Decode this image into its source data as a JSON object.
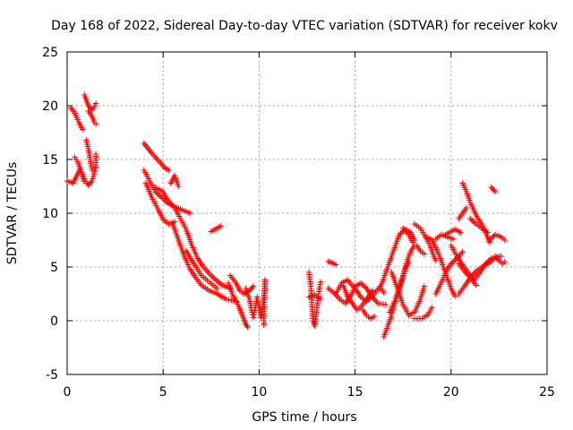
{
  "chart_data": {
    "type": "scatter",
    "title": "Day 168 of 2022, Sidereal Day-to-day VTEC variation (SDTVAR) for receiver kokv",
    "xlabel": "GPS time / hours",
    "ylabel": "SDTVAR / TECUs",
    "xlim": [
      0,
      25
    ],
    "ylim": [
      -5,
      25
    ],
    "xticks": [
      "0",
      "5",
      "10",
      "15",
      "20",
      "25"
    ],
    "yticks": [
      "-5",
      "0",
      "5",
      "10",
      "15",
      "20",
      "25"
    ],
    "grid": true,
    "marker": "plus",
    "color": "#ff0000",
    "tracks": [
      [
        [
          0.0,
          13.0
        ],
        [
          0.3,
          12.8
        ],
        [
          0.5,
          13.5
        ],
        [
          0.7,
          14.2
        ],
        [
          0.85,
          13.0
        ]
      ],
      [
        [
          0.2,
          19.8
        ],
        [
          0.4,
          19.3
        ],
        [
          0.6,
          18.5
        ],
        [
          0.8,
          17.8
        ]
      ],
      [
        [
          0.4,
          15.2
        ],
        [
          0.55,
          14.8
        ],
        [
          0.7,
          14.0
        ],
        [
          0.9,
          13.2
        ],
        [
          1.1,
          12.6
        ],
        [
          1.3,
          13.0
        ],
        [
          1.5,
          14.3
        ],
        [
          1.5,
          15.5
        ]
      ],
      [
        [
          0.9,
          21.0
        ],
        [
          1.0,
          20.5
        ],
        [
          1.1,
          20.0
        ],
        [
          1.3,
          19.6
        ],
        [
          1.5,
          20.2
        ]
      ],
      [
        [
          1.0,
          16.8
        ],
        [
          1.1,
          16.0
        ],
        [
          1.2,
          15.0
        ],
        [
          1.3,
          14.0
        ]
      ],
      [
        [
          1.1,
          19.5
        ],
        [
          1.3,
          19.0
        ],
        [
          1.4,
          18.5
        ],
        [
          1.5,
          18.3
        ]
      ],
      [
        [
          4.0,
          16.5
        ],
        [
          4.4,
          15.6
        ],
        [
          4.8,
          14.8
        ],
        [
          5.1,
          14.2
        ],
        [
          5.3,
          14.0
        ]
      ],
      [
        [
          4.0,
          14.0
        ],
        [
          4.3,
          13.0
        ],
        [
          4.6,
          12.0
        ],
        [
          4.9,
          11.5
        ],
        [
          5.2,
          11.0
        ],
        [
          5.6,
          10.6
        ],
        [
          6.0,
          10.3
        ],
        [
          6.4,
          10.0
        ]
      ],
      [
        [
          4.1,
          12.8
        ],
        [
          4.4,
          11.5
        ],
        [
          4.7,
          10.5
        ],
        [
          5.0,
          9.4
        ],
        [
          5.3,
          9.0
        ],
        [
          5.6,
          9.2
        ]
      ],
      [
        [
          4.6,
          12.4
        ],
        [
          5.0,
          12.0
        ],
        [
          5.2,
          11.3
        ],
        [
          5.6,
          10.5
        ],
        [
          5.9,
          9.5
        ],
        [
          6.2,
          8.5
        ],
        [
          6.5,
          7.0
        ],
        [
          6.8,
          5.8
        ],
        [
          7.1,
          5.0
        ],
        [
          7.5,
          4.2
        ],
        [
          8.0,
          3.4
        ],
        [
          8.5,
          3.0
        ]
      ],
      [
        [
          5.4,
          12.8
        ],
        [
          5.6,
          13.5
        ],
        [
          5.8,
          12.5
        ]
      ],
      [
        [
          5.5,
          9.0
        ],
        [
          5.8,
          7.5
        ],
        [
          6.1,
          6.0
        ],
        [
          6.4,
          4.8
        ],
        [
          6.7,
          4.0
        ],
        [
          7.0,
          3.3
        ],
        [
          7.4,
          2.8
        ],
        [
          7.8,
          2.5
        ],
        [
          8.3,
          2.0
        ],
        [
          8.8,
          1.8
        ]
      ],
      [
        [
          6.2,
          6.5
        ],
        [
          6.6,
          5.3
        ],
        [
          7.0,
          4.2
        ],
        [
          7.4,
          3.6
        ],
        [
          7.8,
          3.0
        ]
      ],
      [
        [
          7.5,
          8.3
        ],
        [
          7.8,
          8.6
        ],
        [
          8.0,
          8.8
        ]
      ],
      [
        [
          8.4,
          3.5
        ],
        [
          8.6,
          2.5
        ],
        [
          8.9,
          1.5
        ],
        [
          9.1,
          0.6
        ],
        [
          9.3,
          -0.3
        ],
        [
          9.4,
          -0.6
        ]
      ],
      [
        [
          8.5,
          4.2
        ],
        [
          8.8,
          3.5
        ],
        [
          9.0,
          2.8
        ],
        [
          9.2,
          2.5
        ],
        [
          9.5,
          2.8
        ],
        [
          9.7,
          3.2
        ]
      ],
      [
        [
          9.3,
          3.0
        ],
        [
          9.5,
          2.0
        ],
        [
          9.6,
          1.0
        ],
        [
          9.7,
          0.3
        ],
        [
          9.8,
          1.2
        ],
        [
          9.9,
          2.2
        ],
        [
          10.0,
          1.0
        ],
        [
          10.1,
          0.3
        ],
        [
          10.2,
          1.5
        ],
        [
          10.3,
          3.0
        ],
        [
          10.3,
          3.8
        ],
        [
          10.25,
          -0.4
        ]
      ],
      [
        [
          12.6,
          4.5
        ],
        [
          12.7,
          3.0
        ],
        [
          12.75,
          1.5
        ],
        [
          12.8,
          0.0
        ],
        [
          12.9,
          -0.5
        ],
        [
          13.0,
          1.0
        ],
        [
          13.1,
          2.5
        ],
        [
          13.2,
          3.6
        ]
      ],
      [
        [
          12.6,
          2.2
        ],
        [
          12.9,
          2.4
        ],
        [
          13.2,
          2.0
        ]
      ],
      [
        [
          13.6,
          5.5
        ],
        [
          13.8,
          5.4
        ],
        [
          14.0,
          5.2
        ]
      ],
      [
        [
          13.6,
          3.0
        ],
        [
          13.9,
          2.6
        ],
        [
          14.2,
          2.0
        ],
        [
          14.5,
          1.6
        ],
        [
          14.8,
          2.4
        ],
        [
          15.0,
          3.2
        ],
        [
          15.3,
          3.5
        ],
        [
          15.6,
          3.0
        ],
        [
          15.9,
          2.2
        ],
        [
          16.2,
          1.6
        ],
        [
          16.6,
          1.5
        ]
      ],
      [
        [
          14.0,
          2.5
        ],
        [
          14.3,
          3.5
        ],
        [
          14.6,
          3.8
        ],
        [
          15.0,
          3.0
        ],
        [
          15.3,
          2.2
        ],
        [
          15.6,
          1.8
        ],
        [
          16.0,
          2.5
        ],
        [
          16.3,
          3.2
        ],
        [
          16.5,
          2.6
        ]
      ],
      [
        [
          14.4,
          3.2
        ],
        [
          14.6,
          2.3
        ],
        [
          14.9,
          1.5
        ],
        [
          15.1,
          1.0
        ],
        [
          15.3,
          1.3
        ],
        [
          15.6,
          2.0
        ],
        [
          15.9,
          2.8
        ]
      ],
      [
        [
          15.4,
          1.0
        ],
        [
          15.6,
          0.5
        ],
        [
          15.8,
          0.2
        ],
        [
          16.0,
          0.4
        ]
      ],
      [
        [
          16.3,
          3.0
        ],
        [
          16.5,
          4.0
        ],
        [
          16.7,
          5.0
        ],
        [
          16.9,
          6.0
        ],
        [
          17.1,
          7.0
        ],
        [
          17.3,
          8.0
        ],
        [
          17.6,
          8.5
        ],
        [
          17.9,
          8.2
        ],
        [
          18.1,
          7.5
        ]
      ],
      [
        [
          16.5,
          -1.5
        ],
        [
          16.7,
          -0.5
        ],
        [
          16.9,
          0.5
        ],
        [
          17.1,
          1.8
        ],
        [
          17.3,
          3.0
        ],
        [
          17.5,
          4.2
        ],
        [
          17.7,
          5.5
        ],
        [
          17.9,
          6.5
        ],
        [
          18.1,
          7.0
        ]
      ],
      [
        [
          16.9,
          4.5
        ],
        [
          17.2,
          3.0
        ],
        [
          17.5,
          1.5
        ],
        [
          17.8,
          0.5
        ],
        [
          18.1,
          0.8
        ],
        [
          18.4,
          2.0
        ],
        [
          18.6,
          3.2
        ]
      ],
      [
        [
          16.8,
          0.8
        ],
        [
          17.1,
          2.0
        ],
        [
          17.4,
          3.5
        ],
        [
          17.6,
          4.8
        ],
        [
          17.8,
          5.5
        ]
      ],
      [
        [
          17.5,
          8.6
        ],
        [
          17.8,
          8.0
        ],
        [
          18.0,
          7.3
        ]
      ],
      [
        [
          18.1,
          0.2
        ],
        [
          18.5,
          0.2
        ],
        [
          18.8,
          0.6
        ],
        [
          19.0,
          1.2
        ]
      ],
      [
        [
          18.1,
          9.0
        ],
        [
          18.4,
          8.6
        ],
        [
          18.6,
          8.0
        ],
        [
          18.9,
          7.0
        ],
        [
          19.1,
          6.0
        ],
        [
          19.2,
          5.6
        ]
      ],
      [
        [
          18.2,
          7.0
        ],
        [
          18.4,
          6.5
        ],
        [
          18.6,
          6.2
        ]
      ],
      [
        [
          18.7,
          7.8
        ],
        [
          19.0,
          7.5
        ],
        [
          19.2,
          6.8
        ],
        [
          19.4,
          6.0
        ],
        [
          19.6,
          5.0
        ],
        [
          19.8,
          4.0
        ],
        [
          20.0,
          3.0
        ],
        [
          20.2,
          2.3
        ]
      ],
      [
        [
          19.2,
          2.5
        ],
        [
          19.4,
          3.2
        ],
        [
          19.6,
          4.0
        ],
        [
          19.8,
          4.8
        ],
        [
          20.0,
          5.3
        ],
        [
          20.3,
          5.8
        ],
        [
          20.6,
          6.4
        ]
      ],
      [
        [
          19.2,
          7.6
        ],
        [
          19.5,
          8.0
        ],
        [
          19.8,
          7.8
        ],
        [
          20.1,
          7.6
        ]
      ],
      [
        [
          19.7,
          8.0
        ],
        [
          20.0,
          8.3
        ],
        [
          20.2,
          8.5
        ],
        [
          20.5,
          8.2
        ]
      ],
      [
        [
          20.0,
          7.0
        ],
        [
          20.3,
          6.0
        ],
        [
          20.6,
          5.2
        ],
        [
          20.9,
          4.5
        ],
        [
          21.2,
          3.8
        ],
        [
          21.5,
          4.5
        ],
        [
          21.8,
          5.3
        ],
        [
          22.1,
          5.8
        ]
      ],
      [
        [
          20.4,
          5.3
        ],
        [
          20.7,
          4.6
        ],
        [
          21.0,
          4.0
        ],
        [
          21.3,
          3.3
        ]
      ],
      [
        [
          20.4,
          2.5
        ],
        [
          20.7,
          3.2
        ],
        [
          21.0,
          4.0
        ],
        [
          21.3,
          4.6
        ],
        [
          21.6,
          5.0
        ],
        [
          22.0,
          5.4
        ],
        [
          22.3,
          5.9
        ],
        [
          22.6,
          6.0
        ]
      ],
      [
        [
          20.6,
          12.8
        ],
        [
          20.8,
          12.0
        ],
        [
          21.0,
          11.0
        ],
        [
          21.2,
          10.2
        ],
        [
          21.4,
          9.5
        ],
        [
          21.6,
          9.0
        ],
        [
          21.8,
          8.2
        ],
        [
          22.0,
          7.3
        ]
      ],
      [
        [
          21.0,
          9.5
        ],
        [
          21.3,
          9.0
        ],
        [
          21.6,
          8.6
        ],
        [
          21.9,
          8.2
        ]
      ],
      [
        [
          20.8,
          10.5
        ],
        [
          20.6,
          10.0
        ],
        [
          20.4,
          9.5
        ]
      ],
      [
        [
          22.1,
          12.4
        ],
        [
          22.3,
          12.0
        ]
      ],
      [
        [
          22.0,
          7.5
        ],
        [
          22.3,
          8.0
        ],
        [
          22.6,
          7.8
        ],
        [
          22.8,
          7.5
        ]
      ],
      [
        [
          22.3,
          6.0
        ],
        [
          22.5,
          5.6
        ],
        [
          22.7,
          5.3
        ],
        [
          22.8,
          5.5
        ]
      ]
    ]
  }
}
